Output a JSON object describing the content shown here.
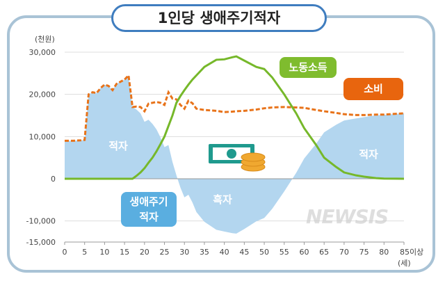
{
  "title": "1인당 생애주기적자",
  "watermark": "NEWSIS",
  "chart_data": {
    "type": "line",
    "title": "1인당 생애주기적자",
    "y_unit": "(천원)",
    "x_unit": "(세)",
    "ylim": [
      -15000,
      30000
    ],
    "yticks": [
      30000,
      20000,
      10000,
      0,
      -10000,
      -15000
    ],
    "ytick_labels": [
      "30,000",
      "20,000",
      "10,000",
      "0",
      "-10,000",
      "-15,000"
    ],
    "xlim": [
      0,
      85
    ],
    "xtick_labels": [
      "0",
      "5",
      "10",
      "15",
      "20",
      "25",
      "30",
      "35",
      "40",
      "45",
      "50",
      "55",
      "60",
      "65",
      "70",
      "75",
      "80",
      "85이상"
    ],
    "grid": true,
    "x": [
      0,
      2,
      4,
      5,
      6,
      7,
      8,
      9,
      10,
      11,
      12,
      13,
      14,
      15,
      16,
      17,
      18,
      19,
      20,
      21,
      22,
      23,
      24,
      25,
      26,
      27,
      28,
      29,
      30,
      31,
      32,
      33,
      35,
      38,
      40,
      42,
      43,
      45,
      48,
      50,
      52,
      55,
      58,
      60,
      63,
      65,
      68,
      70,
      73,
      75,
      78,
      80,
      83,
      85
    ],
    "series": [
      {
        "name": "소비",
        "color": "#e8731a",
        "values": [
          9000,
          9000,
          9100,
          9200,
          20000,
          20500,
          20300,
          21500,
          22300,
          22000,
          21000,
          22500,
          23000,
          23500,
          24500,
          17000,
          17100,
          17000,
          16000,
          17800,
          18000,
          18200,
          18000,
          17500,
          20500,
          19000,
          18800,
          17500,
          16600,
          18500,
          17900,
          16600,
          16300,
          16100,
          15800,
          15900,
          16000,
          16100,
          16400,
          16700,
          16900,
          17000,
          16900,
          16800,
          16300,
          16000,
          15600,
          15300,
          15100,
          15100,
          15200,
          15200,
          15400,
          15500
        ]
      },
      {
        "name": "노동소득",
        "color": "#76b82a",
        "values": [
          0,
          0,
          0,
          0,
          0,
          0,
          0,
          0,
          0,
          0,
          0,
          0,
          0,
          0,
          0,
          0,
          700,
          1500,
          2500,
          3800,
          5000,
          6500,
          8200,
          10000,
          12500,
          15000,
          18000,
          19600,
          21000,
          22300,
          23500,
          24500,
          26500,
          28200,
          28300,
          28800,
          29000,
          28000,
          26500,
          26000,
          24000,
          20000,
          15500,
          12000,
          8000,
          5000,
          2800,
          1500,
          800,
          500,
          150,
          50,
          20,
          0
        ]
      }
    ],
    "annotations": [
      "적자",
      "흑자",
      "적자",
      "생애주기\n적자"
    ],
    "deficit_color": "#b3d6ef"
  },
  "labels": {
    "deficit_left": "적자",
    "surplus": "흑자",
    "deficit_right": "적자",
    "lifecycle_line1": "생애주기",
    "lifecycle_line2": "적자",
    "income": "노동소득",
    "consumption": "소비"
  }
}
